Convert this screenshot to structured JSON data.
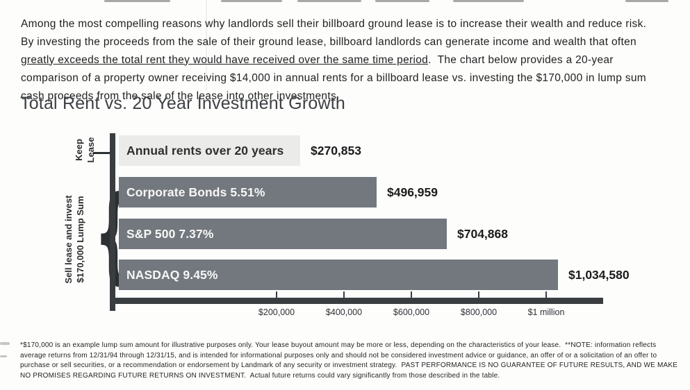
{
  "intro": {
    "part1": "Among the most compelling reasons why landlords sell their billboard ground lease is to increase their wealth and reduce risk.  By investing the proceeds from the sale of their ground lease, billboard landlords can generate income and wealth that often ",
    "underlined": "greatly exceeds the total rent they would have received over the same time period",
    "part2": ".  The chart below provides a 20-year comparison of a property owner receiving $14,000 in annual rents for a billboard lease vs. investing the $170,000 in lump sum cash proceeds from the sale of the lease into other investments."
  },
  "chart_data": {
    "type": "bar",
    "orientation": "horizontal",
    "title": "Total Rent vs. 20 Year Investment Growth",
    "bars": [
      {
        "key": "annual-rents",
        "label": "Annual rents over 20 years",
        "value": 270853,
        "value_label": "$270,853",
        "group": "Keep Lease",
        "style": "light"
      },
      {
        "key": "corporate-bonds",
        "label": "Corporate Bonds 5.51%",
        "value": 496959,
        "value_label": "$496,959",
        "group": "Sell lease and invest $170,000 Lump Sum",
        "style": "dark"
      },
      {
        "key": "sp500",
        "label": "S&P 500 7.37%",
        "value": 704868,
        "value_label": "$704,868",
        "group": "Sell lease and invest $170,000 Lump Sum",
        "style": "dark"
      },
      {
        "key": "nasdaq",
        "label": "NASDAQ 9.45%",
        "value": 1034580,
        "value_label": "$1,034,580",
        "group": "Sell lease and invest $170,000 Lump Sum",
        "style": "dark"
      }
    ],
    "x_axis": {
      "xlim": [
        0,
        1100000
      ],
      "ticks": [
        {
          "value": 200000,
          "label": "$200,000"
        },
        {
          "value": 400000,
          "label": "$400,000"
        },
        {
          "value": 600000,
          "label": "$600,000"
        },
        {
          "value": 800000,
          "label": "$800,000"
        },
        {
          "value": 1000000,
          "label": "$1 million"
        }
      ]
    },
    "group_labels": {
      "keep": {
        "line1": "Keep",
        "line2": "Lease"
      },
      "sell": {
        "line1": "Sell lease and invest",
        "line2": "$170,000 Lump Sum"
      }
    },
    "brace_glyph": "{",
    "legend": "none",
    "grid": "off",
    "colors": {
      "dark_bar": "#73787f",
      "light_bar": "#ebecea",
      "bar_text_on_dark": "#f7f7f6",
      "bar_text_on_light": "#2e2e2e",
      "value_text": "#1b1b1b",
      "axis": "#3a3d40"
    }
  },
  "footnote": "*$170,000 is an example lump sum amount for illustrative purposes only. Your lease buyout amount may be more or less, depending on the characteristics of your lease.  **NOTE: information reflects average returns from 12/31/94 through 12/31/15, and is intended for informational purposes only and should not be considered investment advice or guidance, an offer of or a solicitation of an offer to purchase or sell securities, or a recommendation or endorsement by Landmark of any security or investment strategy.  PAST PERFORMANCE IS NO GUARANTEE OF FUTURE RESULTS, AND WE MAKE NO PROMISES REGARDING FUTURE RETURNS ON INVESTMENT.  Actual future returns could vary significantly from those described in the table."
}
